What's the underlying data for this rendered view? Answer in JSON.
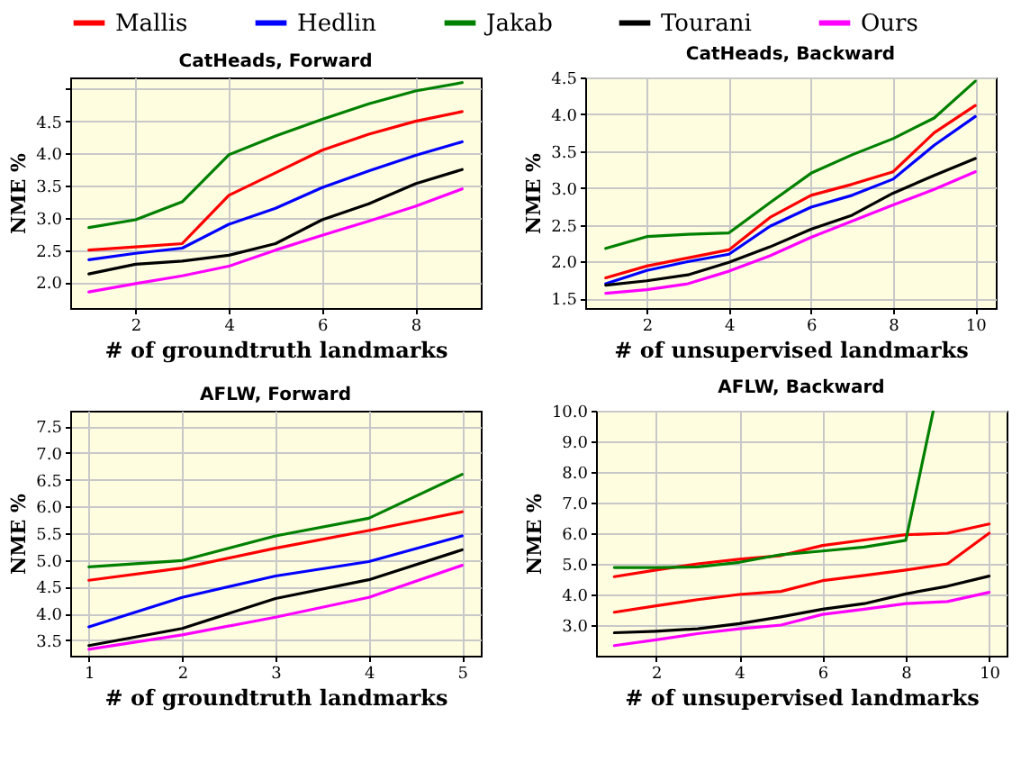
{
  "chart_data": [
    {
      "type": "line",
      "title": "CatHeads, Forward",
      "xlabel": "# of groundtruth landmarks",
      "ylabel": "NME %",
      "legend": "top",
      "grid": true,
      "x": [
        1,
        2,
        3,
        4,
        5,
        6,
        7,
        8,
        9
      ],
      "xlim": [
        0.6,
        9.4
      ],
      "xticks": [
        2,
        4,
        6,
        8
      ],
      "ylim": [
        1.6,
        5.18
      ],
      "yticks": [
        {
          "value": 2,
          "label": "2.0"
        },
        2.5,
        {
          "value": 3,
          "label": "3.0"
        },
        3.5,
        {
          "value": 4,
          "label": "4.0"
        },
        4.5,
        {
          "value": 5,
          "label": null
        }
      ],
      "series": [
        {
          "name": "Mallis",
          "color": "#ff0000",
          "values": [
            2.5,
            2.55,
            2.6,
            3.35,
            3.7,
            4.05,
            4.3,
            4.5,
            4.65
          ]
        },
        {
          "name": "Hedlin",
          "color": "#0000ff",
          "values": [
            2.35,
            2.45,
            2.53,
            2.9,
            3.15,
            3.47,
            3.73,
            3.97,
            4.18
          ]
        },
        {
          "name": "Jakab",
          "color": "#008000",
          "values": [
            2.85,
            2.97,
            3.25,
            3.98,
            4.27,
            4.53,
            4.77,
            4.97,
            5.1
          ]
        },
        {
          "name": "Tourani",
          "color": "#000000",
          "values": [
            2.13,
            2.28,
            2.33,
            2.42,
            2.6,
            2.97,
            3.22,
            3.53,
            3.75
          ]
        },
        {
          "name": "Ours",
          "color": "#ff00ff",
          "values": [
            1.85,
            1.98,
            2.1,
            2.25,
            2.5,
            2.73,
            2.95,
            3.18,
            3.45
          ]
        }
      ]
    },
    {
      "type": "line",
      "title": "CatHeads, Backward",
      "xlabel": "# of unsupervised landmarks",
      "ylabel": "NME %",
      "grid": true,
      "x": [
        1,
        2,
        3,
        4,
        5,
        6,
        7,
        8,
        9,
        10
      ],
      "xlim": [
        0.5,
        10.5
      ],
      "xticks": [
        2,
        4,
        6,
        8,
        10
      ],
      "ylim": [
        1.37,
        4.5
      ],
      "yticks": [
        1.5,
        {
          "value": 2,
          "label": "2.0"
        },
        2.5,
        {
          "value": 3,
          "label": "3.0"
        },
        3.5,
        {
          "value": 4,
          "label": "4.0"
        },
        4.5
      ],
      "series": [
        {
          "name": "Mallis",
          "color": "#ff0000",
          "values": [
            1.78,
            1.94,
            2.05,
            2.16,
            2.6,
            2.9,
            3.05,
            3.22,
            3.75,
            4.12
          ]
        },
        {
          "name": "Hedlin",
          "color": "#0000ff",
          "values": [
            1.7,
            1.88,
            2.0,
            2.1,
            2.48,
            2.74,
            2.9,
            3.12,
            3.58,
            3.97
          ]
        },
        {
          "name": "Jakab",
          "color": "#008000",
          "values": [
            2.18,
            2.34,
            2.37,
            2.39,
            2.8,
            3.2,
            3.45,
            3.67,
            3.95,
            4.45
          ]
        },
        {
          "name": "Tourani",
          "color": "#000000",
          "values": [
            1.68,
            1.74,
            1.82,
            1.99,
            2.2,
            2.44,
            2.63,
            2.93,
            3.17,
            3.4
          ]
        },
        {
          "name": "Ours",
          "color": "#ff00ff",
          "values": [
            1.57,
            1.62,
            1.7,
            1.87,
            2.08,
            2.33,
            2.55,
            2.77,
            2.98,
            3.22
          ]
        }
      ]
    },
    {
      "type": "line",
      "title": "AFLW, Forward",
      "xlabel": "# of groundtruth landmarks",
      "ylabel": "NME %",
      "grid": true,
      "x": [
        1,
        2,
        3,
        4,
        5
      ],
      "xlim": [
        0.8,
        5.2
      ],
      "xticks": [
        1,
        2,
        3,
        4,
        5
      ],
      "ylim": [
        3.21,
        7.79
      ],
      "yticks": [
        3.5,
        {
          "value": 4,
          "label": "4.0"
        },
        4.5,
        {
          "value": 5,
          "label": "5.0"
        },
        5.5,
        {
          "value": 6,
          "label": "6.0"
        },
        6.5,
        {
          "value": 7,
          "label": "7.0"
        },
        7.5
      ],
      "series": [
        {
          "name": "Mallis",
          "color": "#ff0000",
          "values": [
            4.62,
            4.85,
            5.22,
            5.55,
            5.9
          ]
        },
        {
          "name": "Hedlin",
          "color": "#0000ff",
          "values": [
            3.75,
            4.3,
            4.7,
            4.97,
            5.45
          ]
        },
        {
          "name": "Jakab",
          "color": "#008000",
          "values": [
            4.87,
            4.99,
            5.45,
            5.78,
            6.6
          ]
        },
        {
          "name": "Tourani",
          "color": "#000000",
          "values": [
            3.4,
            3.72,
            4.28,
            4.63,
            5.19
          ]
        },
        {
          "name": "Ours",
          "color": "#ff00ff",
          "values": [
            3.33,
            3.6,
            3.93,
            4.3,
            4.9
          ]
        }
      ]
    },
    {
      "type": "line",
      "title": "AFLW, Backward",
      "xlabel": "# of unsupervised landmarks",
      "ylabel": "NME %",
      "grid": true,
      "x": [
        1,
        2,
        3,
        4,
        5,
        6,
        7,
        8,
        9,
        10
      ],
      "xlim": [
        0.56,
        10.42
      ],
      "xticks": [
        2,
        4,
        6,
        8,
        10
      ],
      "ylim": [
        2.0,
        10.0
      ],
      "yticks": [
        {
          "value": 3,
          "label": "3.0"
        },
        {
          "value": 4,
          "label": "4.0"
        },
        {
          "value": 5,
          "label": "5.0"
        },
        {
          "value": 6,
          "label": "6.0"
        },
        {
          "value": 7,
          "label": "7.0"
        },
        {
          "value": 8,
          "label": "8.0"
        },
        {
          "value": 9,
          "label": "9.0"
        },
        {
          "value": 10,
          "label": "10.0"
        }
      ],
      "series": [
        {
          "name": "Mallis",
          "color": "#ff0000",
          "values": [
            4.58,
            4.8,
            5.0,
            5.15,
            5.27,
            5.6,
            5.78,
            5.95,
            6.0,
            6.3
          ]
        },
        {
          "color": "#ff0000",
          "values": [
            3.42,
            3.63,
            3.83,
            4.0,
            4.1,
            4.45,
            4.62,
            4.8,
            5.0,
            6.0
          ]
        },
        {
          "name": "Jakab",
          "color": "#008000",
          "x": [
            1,
            2,
            3,
            4,
            5,
            6,
            7,
            8,
            8.66
          ],
          "values": [
            4.88,
            4.88,
            4.9,
            5.05,
            5.3,
            5.42,
            5.55,
            5.77,
            10.0
          ]
        },
        {
          "name": "Tourani",
          "color": "#000000",
          "values": [
            2.75,
            2.8,
            2.88,
            3.05,
            3.27,
            3.52,
            3.7,
            4.02,
            4.27,
            4.6
          ]
        },
        {
          "name": "Ours",
          "color": "#ff00ff",
          "values": [
            2.33,
            2.52,
            2.72,
            2.88,
            3.0,
            3.35,
            3.52,
            3.7,
            3.77,
            4.07
          ]
        }
      ]
    }
  ]
}
